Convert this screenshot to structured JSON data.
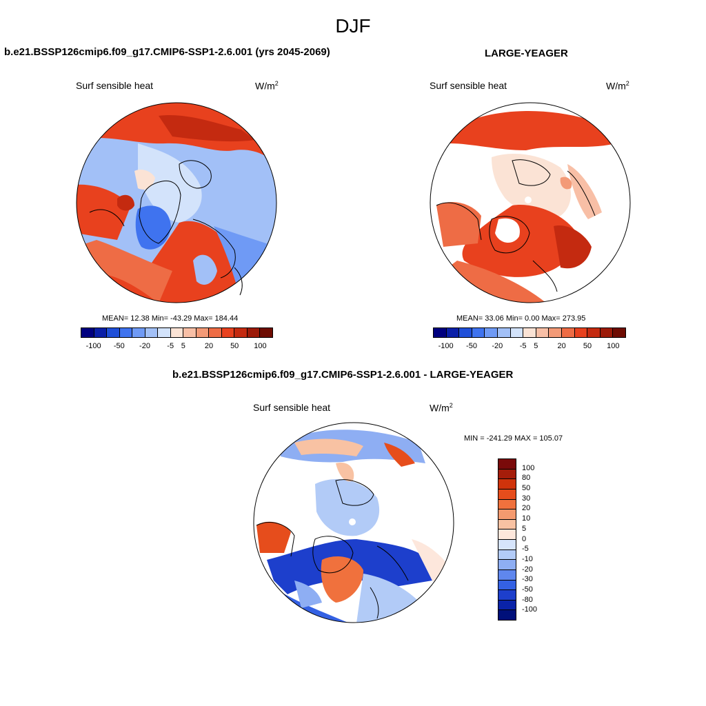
{
  "figure": {
    "title": "DJF"
  },
  "panels": [
    {
      "id": "model",
      "title": "b.e21.BSSP126cmip6.f09_g17.CMIP6-SSP1-2.6.001 (yrs 2045-2069)",
      "variable": "Surf sensible heat",
      "units": "W/m",
      "units_sup": "2",
      "stats": "MEAN=  12.38  Min= -43.29  Max= 184.44",
      "colorbar_labels": [
        "-100",
        "-50",
        "-20",
        "-5",
        "5",
        "20",
        "50",
        "100"
      ]
    },
    {
      "id": "obs",
      "title": "LARGE-YEAGER",
      "variable": "Surf sensible heat",
      "units": "W/m",
      "units_sup": "2",
      "stats": "MEAN=  33.06  Min=   0.00  Max= 273.95",
      "colorbar_labels": [
        "-100",
        "-50",
        "-20",
        "-5",
        "5",
        "20",
        "50",
        "100"
      ]
    },
    {
      "id": "diff",
      "title": "b.e21.BSSP126cmip6.f09_g17.CMIP6-SSP1-2.6.001 - LARGE-YEAGER",
      "variable": "Surf sensible heat",
      "units": "W/m",
      "units_sup": "2",
      "stats": "MIN = -241.29 MAX = 105.07",
      "colorbar_labels": [
        "100",
        "80",
        "50",
        "30",
        "20",
        "10",
        "5",
        "0",
        "-5",
        "-10",
        "-20",
        "-30",
        "-50",
        "-80",
        "-100"
      ]
    }
  ],
  "colors": {
    "mean_scale": [
      "#00007f",
      "#0a1fa8",
      "#1f4fd8",
      "#3f73ef",
      "#6f9af5",
      "#a2c0f7",
      "#d3e3fb",
      "#fbe3d5",
      "#f8bfa6",
      "#f39a77",
      "#ee6c45",
      "#e8411e",
      "#c42a10",
      "#9c1a08",
      "#6e0c02"
    ],
    "diff_scale": [
      "#7a0a0a",
      "#a51d0a",
      "#d0330b",
      "#e64d1c",
      "#f0713d",
      "#f49a6f",
      "#f8c2a3",
      "#fde7dc",
      "#d6e4fb",
      "#b2cbf7",
      "#8eaef3",
      "#5f87ee",
      "#3461e3",
      "#1d3fcc",
      "#0a23a8",
      "#00107a"
    ],
    "land_outline": "#000000",
    "missing": "#ffffff"
  }
}
